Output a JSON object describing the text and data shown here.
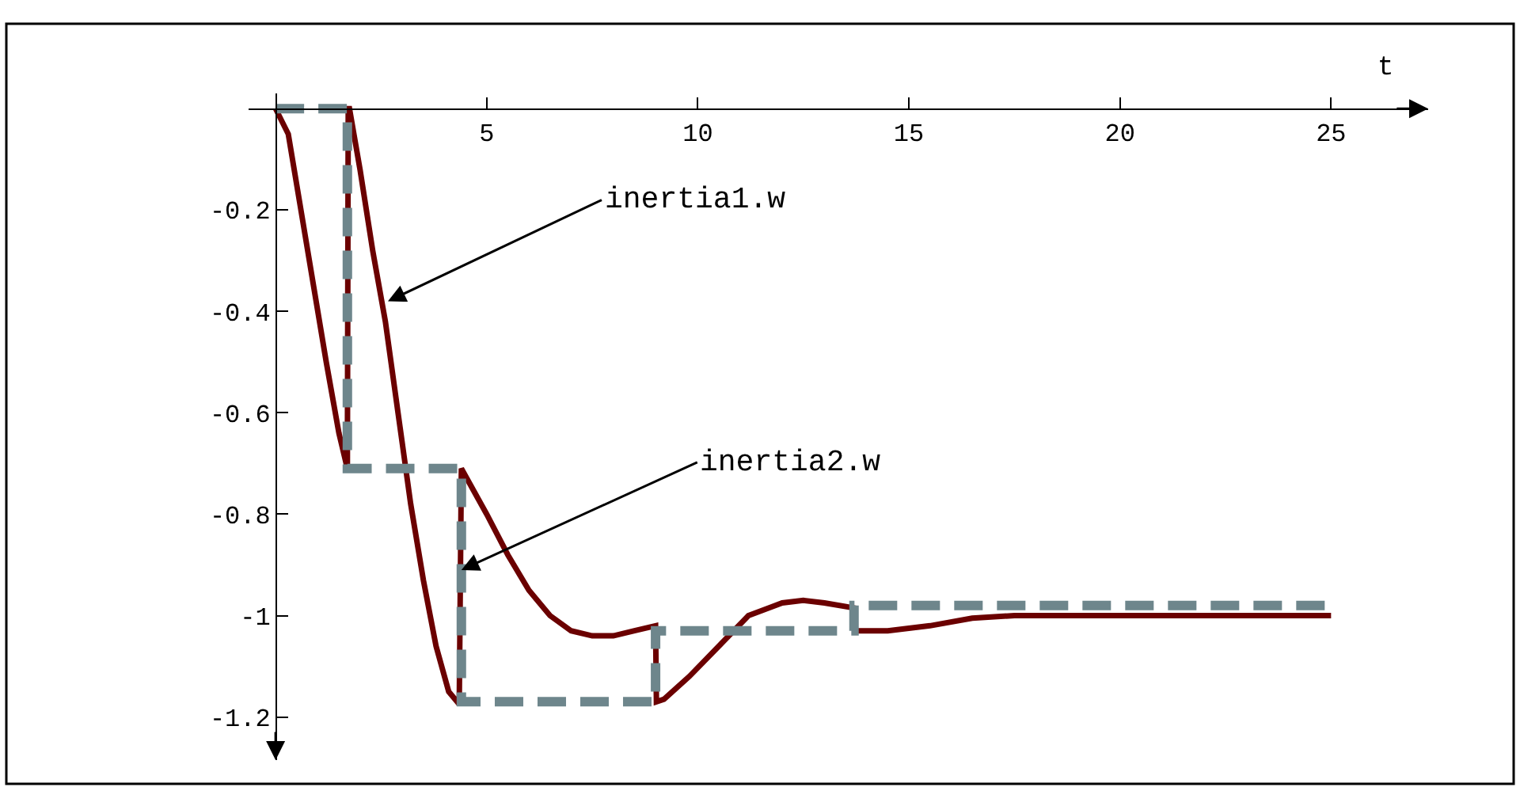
{
  "chart_data": {
    "type": "line",
    "xlabel": "t",
    "xlim": [
      -0.64,
      27.3
    ],
    "ylim": [
      -1.285,
      0.03
    ],
    "xticks": [
      5,
      10,
      15,
      20,
      25
    ],
    "yticks": [
      -0.2,
      -0.4,
      -0.6,
      -0.8,
      -1,
      -1.2
    ],
    "marker": "none",
    "series": [
      {
        "color": "#6b0000",
        "line_style": "solid",
        "x": [
          0,
          0.3,
          0.6,
          0.9,
          1.2,
          1.5,
          1.7,
          1.72,
          1.75,
          2.0,
          2.3,
          2.6,
          2.9,
          3.2,
          3.5,
          3.8,
          4.1,
          4.35,
          4.4,
          5.0,
          5.5,
          6.0,
          6.5,
          7.0,
          7.5,
          8.0,
          8.5,
          9.0,
          9.02,
          9.2,
          9.8,
          10.5,
          11.2,
          12.0,
          12.5,
          13.0,
          13.7,
          13.72,
          14.5,
          15.5,
          16.5,
          17.5,
          25
        ],
        "values": [
          0,
          -0.05,
          -0.2,
          -0.35,
          -0.5,
          -0.64,
          -0.71,
          0,
          0,
          -0.12,
          -0.28,
          -0.42,
          -0.6,
          -0.78,
          -0.93,
          -1.06,
          -1.15,
          -1.175,
          -0.71,
          -0.8,
          -0.88,
          -0.95,
          -1.0,
          -1.03,
          -1.04,
          -1.04,
          -1.03,
          -1.02,
          -1.17,
          -1.165,
          -1.12,
          -1.06,
          -1.0,
          -0.975,
          -0.97,
          -0.975,
          -0.985,
          -1.03,
          -1.03,
          -1.02,
          -1.005,
          -1.0,
          -1.0
        ]
      },
      {
        "color": "#6e868c",
        "type": "step",
        "line_style": "dashed",
        "x": [
          0,
          1.7,
          4.4,
          9,
          13.7,
          25
        ],
        "values": [
          0,
          -0.71,
          -1.17,
          -1.03,
          -0.98,
          -0.98
        ]
      }
    ],
    "annotations": [
      {
        "text": "inertia1.w",
        "x": 2.66,
        "y": -0.38
      },
      {
        "text": "inertia2.w",
        "x": 4.4,
        "y": -0.91
      }
    ]
  }
}
